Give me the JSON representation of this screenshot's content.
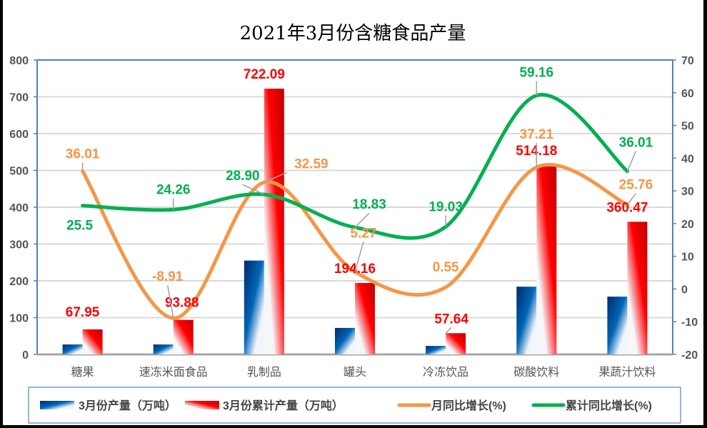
{
  "chart_data": {
    "type": "bar+line",
    "title": "2021年3月份含糖食品产量",
    "categories": [
      "糖果",
      "速冻米面食品",
      "乳制品",
      "罐头",
      "冷冻饮品",
      "碳酸饮料",
      "果蔬汁饮料"
    ],
    "y_left": {
      "min": 0,
      "max": 800,
      "step": 100,
      "ticks": [
        "0",
        "100",
        "200",
        "300",
        "400",
        "500",
        "600",
        "700",
        "800"
      ]
    },
    "y_right": {
      "min": -20,
      "max": 70,
      "step": 10,
      "ticks": [
        "-20",
        "-10",
        "0",
        "10",
        "20",
        "30",
        "40",
        "50",
        "60",
        "70"
      ]
    },
    "grid": true,
    "legend_position": "bottom",
    "series": [
      {
        "name": "3月份产量（万吨）",
        "type": "bar",
        "axis": "left",
        "color": "#0a4f9c",
        "values": [
          27,
          27,
          255,
          72,
          23,
          184,
          157
        ],
        "labels": [
          "",
          "",
          "",
          "",
          "",
          "",
          ""
        ]
      },
      {
        "name": "3月份累计产量（万吨）",
        "type": "bar",
        "axis": "left",
        "color": "#e00000",
        "values": [
          67.95,
          93.88,
          722.09,
          194.16,
          57.64,
          514.18,
          360.47
        ],
        "labels": [
          "67.95",
          "93.88",
          "722.09",
          "194.16",
          "57.64",
          "514.18",
          "360.47"
        ]
      },
      {
        "name": "月同比增长(%)",
        "type": "line",
        "axis": "right",
        "color": "#f79646",
        "values": [
          36.01,
          -8.91,
          32.59,
          5.27,
          0.55,
          37.21,
          25.76
        ],
        "labels": [
          "36.01",
          "-8.91",
          "32.59",
          "5.27",
          "0.55",
          "37.21",
          "25.76"
        ]
      },
      {
        "name": "累计同比增长(%)",
        "type": "line",
        "axis": "right",
        "color": "#00b050",
        "values": [
          25.5,
          24.26,
          28.9,
          18.83,
          19.03,
          59.16,
          36.01
        ],
        "labels": [
          "25.5",
          "24.26",
          "28.90",
          "18.83",
          "19.03",
          "59.16",
          "36.01"
        ]
      }
    ]
  }
}
